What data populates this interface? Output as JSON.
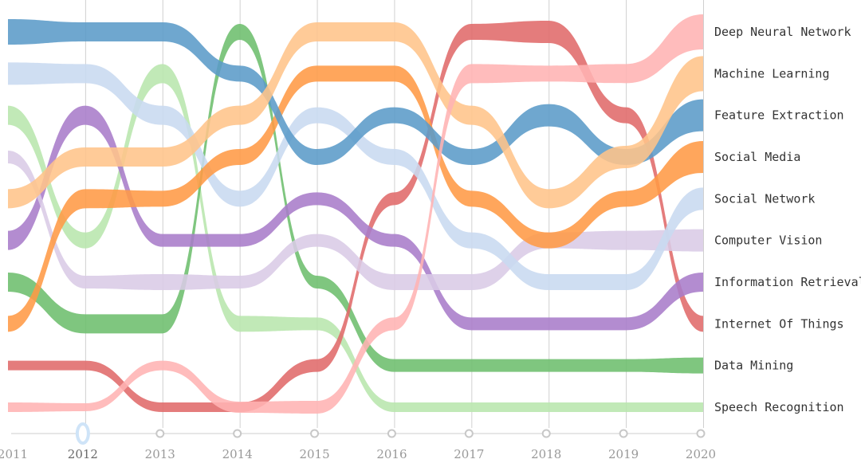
{
  "chart_data": {
    "type": "line",
    "title": "",
    "xlabel": "",
    "ylabel": "",
    "x": [
      "2011",
      "2012",
      "2013",
      "2014",
      "2015",
      "2016",
      "2017",
      "2018",
      "2019",
      "2020"
    ],
    "selected_x": "2012",
    "y_direction": "rank (1 = top)",
    "grid": true,
    "legend": "right",
    "series": [
      {
        "name": "Deep Neural Network",
        "color": "#ffb3b3",
        "values": [
          10,
          10,
          9,
          10,
          10,
          8,
          2,
          2,
          2,
          1
        ],
        "widths": [
          6,
          5,
          6,
          7,
          8,
          8,
          12,
          10,
          12,
          22
        ]
      },
      {
        "name": "Machine Learning",
        "color": "#ffc48a",
        "values": [
          5,
          4,
          4,
          3,
          1,
          1,
          3,
          5,
          4,
          2
        ],
        "widths": [
          12,
          12,
          12,
          12,
          12,
          12,
          12,
          12,
          14,
          22
        ]
      },
      {
        "name": "Feature Extraction",
        "color": "#5b9bc8",
        "values": [
          1,
          1,
          1,
          2,
          4,
          3,
          4,
          3,
          4,
          3
        ],
        "widths": [
          16,
          12,
          12,
          10,
          10,
          10,
          10,
          14,
          10,
          20
        ]
      },
      {
        "name": "Social Media",
        "color": "#ff9a45",
        "values": [
          8,
          5,
          5,
          4,
          2,
          2,
          5,
          6,
          5,
          4
        ],
        "widths": [
          10,
          12,
          10,
          10,
          10,
          10,
          10,
          10,
          10,
          20
        ]
      },
      {
        "name": "Social Network",
        "color": "#c8d9f0",
        "values": [
          2,
          2,
          3,
          5,
          3,
          4,
          6,
          7,
          7,
          5
        ],
        "widths": [
          14,
          12,
          12,
          10,
          10,
          10,
          10,
          10,
          10,
          14
        ]
      },
      {
        "name": "Computer Vision",
        "color": "#d9cbe6",
        "values": [
          4,
          7,
          7,
          7,
          6,
          7,
          7,
          6,
          6,
          6
        ],
        "widths": [
          8,
          8,
          10,
          8,
          8,
          10,
          10,
          10,
          12,
          14
        ]
      },
      {
        "name": "Information Retrieval",
        "color": "#a87cc9",
        "values": [
          6,
          3,
          6,
          6,
          5,
          6,
          8,
          8,
          8,
          7
        ],
        "widths": [
          12,
          12,
          8,
          8,
          8,
          8,
          8,
          8,
          8,
          12
        ]
      },
      {
        "name": "Internet Of Things",
        "color": "#e06a6a",
        "values": [
          9,
          9,
          10,
          10,
          9,
          5,
          1,
          1,
          3,
          8
        ],
        "widths": [
          6,
          6,
          6,
          6,
          8,
          8,
          10,
          14,
          10,
          10
        ]
      },
      {
        "name": "Data Mining",
        "color": "#6dbe6d",
        "values": [
          7,
          8,
          8,
          1,
          7,
          9,
          9,
          9,
          9,
          9
        ],
        "widths": [
          12,
          12,
          12,
          10,
          8,
          8,
          8,
          8,
          8,
          10
        ]
      },
      {
        "name": "Speech Recognition",
        "color": "#b8e6ad",
        "values": [
          3,
          6,
          2,
          8,
          8,
          10,
          10,
          10,
          10,
          10
        ],
        "widths": [
          12,
          10,
          12,
          10,
          8,
          6,
          6,
          6,
          6,
          6
        ]
      }
    ]
  }
}
